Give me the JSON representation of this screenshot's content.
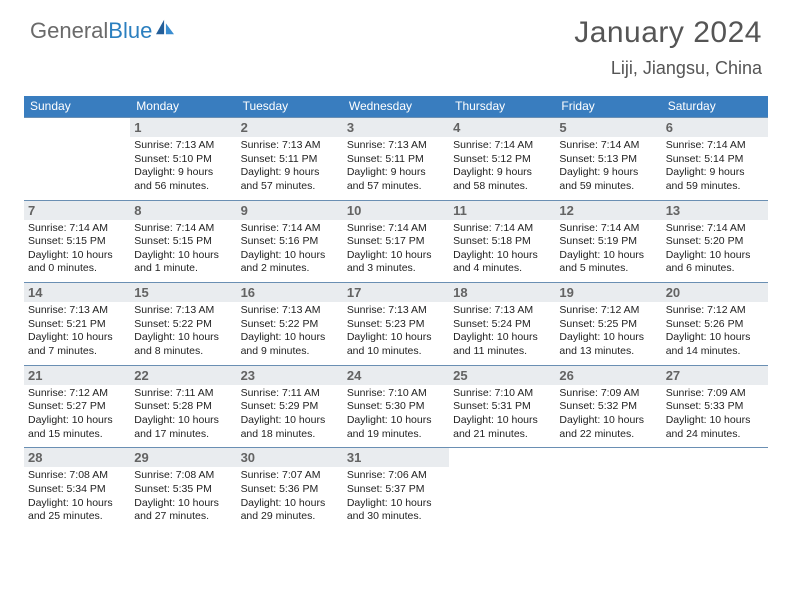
{
  "logo": {
    "textGray": "General",
    "textBlue": "Blue"
  },
  "title": "January 2024",
  "subtitle": "Liji, Jiangsu, China",
  "colors": {
    "header_bg": "#397dbf",
    "header_text": "#ffffff",
    "daynum_bg": "#e9ecef",
    "daynum_text": "#636363",
    "divider": "#6a8fb3",
    "title_text": "#555555",
    "body_text": "#222222",
    "logo_gray": "#6a6a6a",
    "logo_blue": "#2b7fbf"
  },
  "typography": {
    "title_fontsize": 30,
    "subtitle_fontsize": 18,
    "dayheader_fontsize": 12,
    "daynum_fontsize": 13,
    "body_fontsize": 10.5
  },
  "dayHeaders": [
    "Sunday",
    "Monday",
    "Tuesday",
    "Wednesday",
    "Thursday",
    "Friday",
    "Saturday"
  ],
  "weeks": [
    [
      null,
      {
        "n": "1",
        "sr": "7:13 AM",
        "ss": "5:10 PM",
        "dl": "9 hours and 56 minutes."
      },
      {
        "n": "2",
        "sr": "7:13 AM",
        "ss": "5:11 PM",
        "dl": "9 hours and 57 minutes."
      },
      {
        "n": "3",
        "sr": "7:13 AM",
        "ss": "5:11 PM",
        "dl": "9 hours and 57 minutes."
      },
      {
        "n": "4",
        "sr": "7:14 AM",
        "ss": "5:12 PM",
        "dl": "9 hours and 58 minutes."
      },
      {
        "n": "5",
        "sr": "7:14 AM",
        "ss": "5:13 PM",
        "dl": "9 hours and 59 minutes."
      },
      {
        "n": "6",
        "sr": "7:14 AM",
        "ss": "5:14 PM",
        "dl": "9 hours and 59 minutes."
      }
    ],
    [
      {
        "n": "7",
        "sr": "7:14 AM",
        "ss": "5:15 PM",
        "dl": "10 hours and 0 minutes."
      },
      {
        "n": "8",
        "sr": "7:14 AM",
        "ss": "5:15 PM",
        "dl": "10 hours and 1 minute."
      },
      {
        "n": "9",
        "sr": "7:14 AM",
        "ss": "5:16 PM",
        "dl": "10 hours and 2 minutes."
      },
      {
        "n": "10",
        "sr": "7:14 AM",
        "ss": "5:17 PM",
        "dl": "10 hours and 3 minutes."
      },
      {
        "n": "11",
        "sr": "7:14 AM",
        "ss": "5:18 PM",
        "dl": "10 hours and 4 minutes."
      },
      {
        "n": "12",
        "sr": "7:14 AM",
        "ss": "5:19 PM",
        "dl": "10 hours and 5 minutes."
      },
      {
        "n": "13",
        "sr": "7:14 AM",
        "ss": "5:20 PM",
        "dl": "10 hours and 6 minutes."
      }
    ],
    [
      {
        "n": "14",
        "sr": "7:13 AM",
        "ss": "5:21 PM",
        "dl": "10 hours and 7 minutes."
      },
      {
        "n": "15",
        "sr": "7:13 AM",
        "ss": "5:22 PM",
        "dl": "10 hours and 8 minutes."
      },
      {
        "n": "16",
        "sr": "7:13 AM",
        "ss": "5:22 PM",
        "dl": "10 hours and 9 minutes."
      },
      {
        "n": "17",
        "sr": "7:13 AM",
        "ss": "5:23 PM",
        "dl": "10 hours and 10 minutes."
      },
      {
        "n": "18",
        "sr": "7:13 AM",
        "ss": "5:24 PM",
        "dl": "10 hours and 11 minutes."
      },
      {
        "n": "19",
        "sr": "7:12 AM",
        "ss": "5:25 PM",
        "dl": "10 hours and 13 minutes."
      },
      {
        "n": "20",
        "sr": "7:12 AM",
        "ss": "5:26 PM",
        "dl": "10 hours and 14 minutes."
      }
    ],
    [
      {
        "n": "21",
        "sr": "7:12 AM",
        "ss": "5:27 PM",
        "dl": "10 hours and 15 minutes."
      },
      {
        "n": "22",
        "sr": "7:11 AM",
        "ss": "5:28 PM",
        "dl": "10 hours and 17 minutes."
      },
      {
        "n": "23",
        "sr": "7:11 AM",
        "ss": "5:29 PM",
        "dl": "10 hours and 18 minutes."
      },
      {
        "n": "24",
        "sr": "7:10 AM",
        "ss": "5:30 PM",
        "dl": "10 hours and 19 minutes."
      },
      {
        "n": "25",
        "sr": "7:10 AM",
        "ss": "5:31 PM",
        "dl": "10 hours and 21 minutes."
      },
      {
        "n": "26",
        "sr": "7:09 AM",
        "ss": "5:32 PM",
        "dl": "10 hours and 22 minutes."
      },
      {
        "n": "27",
        "sr": "7:09 AM",
        "ss": "5:33 PM",
        "dl": "10 hours and 24 minutes."
      }
    ],
    [
      {
        "n": "28",
        "sr": "7:08 AM",
        "ss": "5:34 PM",
        "dl": "10 hours and 25 minutes."
      },
      {
        "n": "29",
        "sr": "7:08 AM",
        "ss": "5:35 PM",
        "dl": "10 hours and 27 minutes."
      },
      {
        "n": "30",
        "sr": "7:07 AM",
        "ss": "5:36 PM",
        "dl": "10 hours and 29 minutes."
      },
      {
        "n": "31",
        "sr": "7:06 AM",
        "ss": "5:37 PM",
        "dl": "10 hours and 30 minutes."
      },
      null,
      null,
      null
    ]
  ],
  "labels": {
    "sunrise": "Sunrise:",
    "sunset": "Sunset:",
    "daylight": "Daylight:"
  }
}
